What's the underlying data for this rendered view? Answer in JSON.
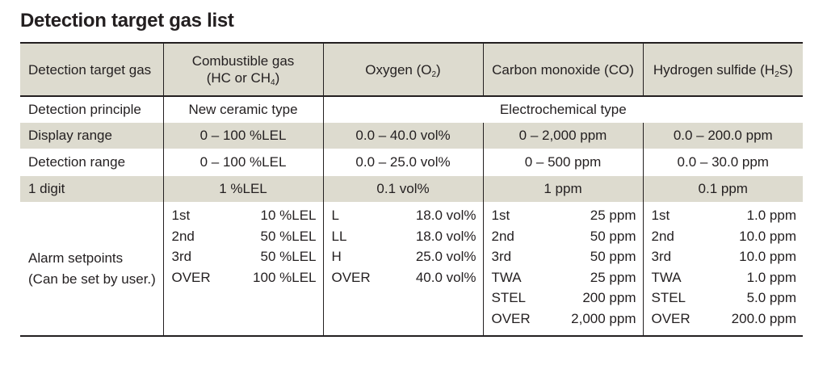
{
  "title": "Detection target gas list",
  "header": {
    "label": "Detection target gas",
    "combustible": {
      "line1": "Combustible gas",
      "line2_pre": "(HC or CH",
      "sub": "4",
      "line2_post": ")"
    },
    "oxygen": {
      "pre": "Oxygen (O",
      "sub": "2",
      "post": ")"
    },
    "co": {
      "text": "Carbon monoxide (CO)"
    },
    "h2s": {
      "pre": "Hydrogen sulfide (H",
      "sub": "2",
      "post": "S)"
    }
  },
  "principle": {
    "label": "Detection principle",
    "combustible": "New ceramic type",
    "electrochemical": "Electrochemical type"
  },
  "display_range": {
    "label": "Display range",
    "values": [
      "0 – 100 %LEL",
      "0.0 – 40.0 vol%",
      "0 – 2,000 ppm",
      "0.0 – 200.0 ppm"
    ]
  },
  "detection_range": {
    "label": "Detection range",
    "values": [
      "0 – 100 %LEL",
      "0.0 – 25.0 vol%",
      "0 – 500 ppm",
      "0.0 – 30.0 ppm"
    ]
  },
  "digit": {
    "label": "1 digit",
    "values": [
      "1 %LEL",
      "0.1 vol%",
      "1 ppm",
      "0.1 ppm"
    ]
  },
  "alarm": {
    "label_line1": "Alarm setpoints",
    "label_line2": "(Can be set by user.)",
    "combustible": [
      {
        "name": "1st",
        "value": "10 %LEL"
      },
      {
        "name": "2nd",
        "value": "50 %LEL"
      },
      {
        "name": "3rd",
        "value": "50 %LEL"
      },
      {
        "name": "OVER",
        "value": "100 %LEL"
      }
    ],
    "oxygen": [
      {
        "name": "L",
        "value": "18.0 vol%"
      },
      {
        "name": "LL",
        "value": "18.0 vol%"
      },
      {
        "name": "H",
        "value": "25.0 vol%"
      },
      {
        "name": "OVER",
        "value": "40.0 vol%"
      }
    ],
    "co": [
      {
        "name": "1st",
        "value": "25 ppm"
      },
      {
        "name": "2nd",
        "value": "50 ppm"
      },
      {
        "name": "3rd",
        "value": "50 ppm"
      },
      {
        "name": "TWA",
        "value": "25 ppm"
      },
      {
        "name": "STEL",
        "value": "200 ppm"
      },
      {
        "name": "OVER",
        "value": "2,000 ppm"
      }
    ],
    "h2s": [
      {
        "name": "1st",
        "value": "1.0 ppm"
      },
      {
        "name": "2nd",
        "value": "10.0 ppm"
      },
      {
        "name": "3rd",
        "value": "10.0 ppm"
      },
      {
        "name": "TWA",
        "value": "1.0 ppm"
      },
      {
        "name": "STEL",
        "value": "5.0 ppm"
      },
      {
        "name": "OVER",
        "value": "200.0 ppm"
      }
    ]
  }
}
